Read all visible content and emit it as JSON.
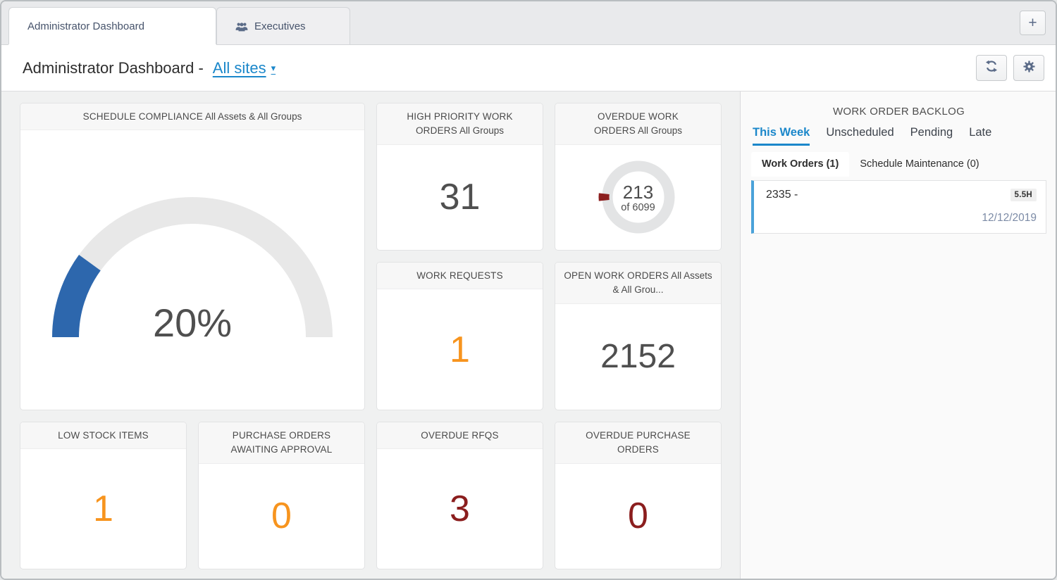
{
  "window": {
    "tabs": [
      {
        "label": "Administrator Dashboard",
        "active": true
      },
      {
        "label": "Executives",
        "active": false
      }
    ],
    "add_tab_label": "+"
  },
  "header": {
    "title": "Administrator Dashboard -",
    "site_selector": "All sites"
  },
  "cards": {
    "schedule_compliance": {
      "title": "SCHEDULE COMPLIANCE",
      "subtitle": "All Assets & All Groups",
      "chart_type": "gauge",
      "percent": 20,
      "percent_label": "20%",
      "color": "#2d67ad"
    },
    "high_priority_work_orders": {
      "title": "HIGH PRIORITY WORK\nORDERS",
      "subtitle": "All Groups",
      "value": "31",
      "color": "#4f4f4f"
    },
    "overdue_work_orders": {
      "title": "OVERDUE WORK\nORDERS",
      "subtitle": "All Groups",
      "chart_type": "donut",
      "value": 213,
      "value_label": "213",
      "total": 6099,
      "total_label": "of 6099",
      "color": "#8b1e1e"
    },
    "work_requests": {
      "title": "WORK REQUESTS",
      "value": "1",
      "color": "#f7941e"
    },
    "open_work_orders": {
      "title": "OPEN WORK ORDERS",
      "subtitle": "All Assets & All Grou...",
      "value": "2152",
      "color": "#4f4f4f"
    },
    "low_stock_items": {
      "title": "LOW STOCK ITEMS",
      "value": "1",
      "color": "#f7941e"
    },
    "purchase_orders_awaiting_approval": {
      "title": "PURCHASE ORDERS\nAWAITING APPROVAL",
      "value": "0",
      "color": "#f7941e"
    },
    "overdue_rfqs": {
      "title": "OVERDUE RFQS",
      "value": "3",
      "color": "#8b1e1e"
    },
    "overdue_purchase_orders": {
      "title": "OVERDUE PURCHASE\nORDERS",
      "value": "0",
      "color": "#8b1e1e"
    }
  },
  "backlog": {
    "title": "WORK ORDER BACKLOG",
    "tabs": [
      {
        "label": "This Week",
        "active": true
      },
      {
        "label": "Unscheduled",
        "active": false
      },
      {
        "label": "Pending",
        "active": false
      },
      {
        "label": "Late",
        "active": false
      }
    ],
    "subtabs": [
      {
        "label": "Work Orders (1)",
        "active": true
      },
      {
        "label": "Schedule Maintenance (0)",
        "active": false
      }
    ],
    "items": [
      {
        "id_label": "2335 -",
        "hours": "5.5H",
        "date": "12/12/2019"
      }
    ]
  },
  "colors": {
    "accent_blue": "#1b87ca",
    "gauge_blue": "#2d67ad",
    "warning_orange": "#f7941e",
    "danger_red": "#8b1e1e",
    "item_accent_blue": "#4aa2d9",
    "icon_slate": "#5b6b88"
  }
}
